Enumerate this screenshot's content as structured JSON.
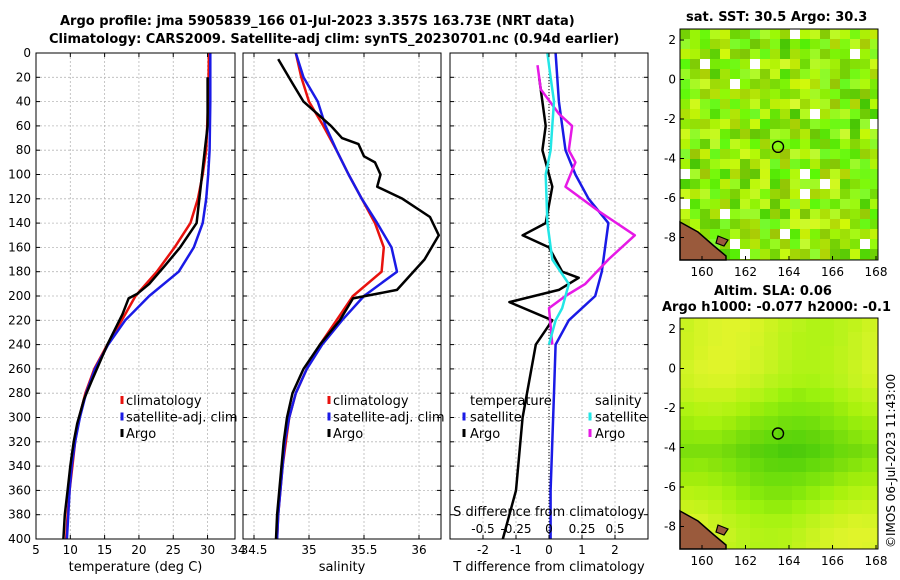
{
  "titles": {
    "line1": "Argo profile: jma 5905839_166 01-Jul-2023 3.357S 163.73E (NRT data)",
    "line2": "Climatology: CARS2009. Satellite-adj clim: synTS_20230701.nc (0.94d earlier)",
    "sst_title": "sat. SST: 30.5 Argo: 30.3",
    "sla_title1": "Altim. SLA: 0.06",
    "sla_title2": "Argo h1000: -0.077 h2000: -0.1",
    "footer": "©IMOS 06-Jul-2023 11:43:00"
  },
  "colors": {
    "climatology": "#e8120e",
    "satellite": "#1a1ae6",
    "argo": "#000000",
    "salinity": "#e619e6",
    "sat_salinity": "#22e6e6"
  },
  "chart_data": [
    {
      "type": "line",
      "name": "temperature",
      "xlabel": "temperature (deg C)",
      "ylabel": "",
      "xlim": [
        5,
        34
      ],
      "ylim": [
        0,
        400
      ],
      "xticks": [
        5,
        10,
        15,
        20,
        25,
        30
      ],
      "yticks": [
        0,
        20,
        40,
        60,
        80,
        100,
        120,
        140,
        160,
        180,
        200,
        220,
        240,
        260,
        280,
        300,
        320,
        340,
        360,
        380,
        400
      ],
      "legend": [
        "climatology",
        "satellite-adj. clim",
        "Argo"
      ],
      "series": [
        {
          "name": "climatology",
          "color": "#e8120e",
          "points": [
            [
              30.2,
              0
            ],
            [
              30.1,
              40
            ],
            [
              29.8,
              80
            ],
            [
              29.3,
              100
            ],
            [
              28.6,
              120
            ],
            [
              27.5,
              140
            ],
            [
              25.2,
              160
            ],
            [
              22.6,
              180
            ],
            [
              19.5,
              200
            ],
            [
              17.5,
              220
            ],
            [
              15.4,
              240
            ],
            [
              13.5,
              260
            ],
            [
              12.2,
              280
            ],
            [
              11.3,
              300
            ],
            [
              10.7,
              320
            ],
            [
              10.3,
              340
            ],
            [
              9.9,
              360
            ],
            [
              9.6,
              380
            ],
            [
              9.4,
              400
            ]
          ]
        },
        {
          "name": "satellite-adj. clim",
          "color": "#1a1ae6",
          "points": [
            [
              30.4,
              0
            ],
            [
              30.4,
              40
            ],
            [
              30.3,
              80
            ],
            [
              30.1,
              100
            ],
            [
              29.8,
              120
            ],
            [
              29.3,
              140
            ],
            [
              28.0,
              160
            ],
            [
              25.8,
              180
            ],
            [
              21.5,
              200
            ],
            [
              18.0,
              220
            ],
            [
              15.5,
              240
            ],
            [
              13.6,
              260
            ],
            [
              12.3,
              280
            ],
            [
              11.4,
              300
            ],
            [
              10.7,
              320
            ],
            [
              10.2,
              340
            ],
            [
              9.9,
              360
            ],
            [
              9.7,
              380
            ],
            [
              9.5,
              400
            ]
          ]
        },
        {
          "name": "Argo",
          "color": "#000000",
          "points": [
            [
              30.0,
              20
            ],
            [
              30.0,
              60
            ],
            [
              29.6,
              80
            ],
            [
              29.0,
              110
            ],
            [
              28.4,
              140
            ],
            [
              26.0,
              160
            ],
            [
              23.8,
              175
            ],
            [
              21.5,
              190
            ],
            [
              19.8,
              198
            ],
            [
              18.5,
              202
            ],
            [
              17.6,
              215
            ],
            [
              15.4,
              240
            ],
            [
              13.1,
              270
            ],
            [
              12.0,
              285
            ],
            [
              11.0,
              305
            ],
            [
              10.5,
              320
            ],
            [
              10.0,
              340
            ],
            [
              9.6,
              360
            ],
            [
              9.2,
              380
            ],
            [
              9.0,
              400
            ]
          ]
        }
      ]
    },
    {
      "type": "line",
      "name": "salinity",
      "xlabel": "salinity",
      "ylabel": "",
      "xlim": [
        34.4,
        36.2
      ],
      "ylim": [
        0,
        400
      ],
      "xticks": [
        34.5,
        35,
        35.5,
        36
      ],
      "legend": [
        "climatology",
        "satellite-adj. clim",
        "Argo"
      ],
      "series": [
        {
          "name": "climatology",
          "color": "#e8120e",
          "points": [
            [
              34.88,
              0
            ],
            [
              34.93,
              20
            ],
            [
              35.0,
              40
            ],
            [
              35.13,
              60
            ],
            [
              35.25,
              80
            ],
            [
              35.36,
              100
            ],
            [
              35.48,
              120
            ],
            [
              35.6,
              140
            ],
            [
              35.68,
              160
            ],
            [
              35.66,
              180
            ],
            [
              35.4,
              200
            ],
            [
              35.25,
              220
            ],
            [
              35.1,
              240
            ],
            [
              34.98,
              260
            ],
            [
              34.88,
              280
            ],
            [
              34.82,
              300
            ],
            [
              34.79,
              320
            ],
            [
              34.76,
              340
            ],
            [
              34.74,
              360
            ],
            [
              34.72,
              380
            ],
            [
              34.71,
              400
            ]
          ]
        },
        {
          "name": "satellite-adj. clim",
          "color": "#1a1ae6",
          "points": [
            [
              34.88,
              0
            ],
            [
              34.95,
              20
            ],
            [
              35.08,
              40
            ],
            [
              35.15,
              60
            ],
            [
              35.25,
              80
            ],
            [
              35.36,
              100
            ],
            [
              35.48,
              120
            ],
            [
              35.62,
              140
            ],
            [
              35.75,
              160
            ],
            [
              35.8,
              180
            ],
            [
              35.5,
              200
            ],
            [
              35.3,
              220
            ],
            [
              35.12,
              240
            ],
            [
              34.98,
              260
            ],
            [
              34.88,
              280
            ],
            [
              34.82,
              300
            ],
            [
              34.78,
              320
            ],
            [
              34.76,
              340
            ],
            [
              34.74,
              360
            ],
            [
              34.72,
              380
            ],
            [
              34.71,
              400
            ]
          ]
        },
        {
          "name": "Argo",
          "color": "#000000",
          "points": [
            [
              34.72,
              5
            ],
            [
              34.85,
              25
            ],
            [
              34.95,
              40
            ],
            [
              35.2,
              60
            ],
            [
              35.3,
              70
            ],
            [
              35.45,
              75
            ],
            [
              35.5,
              85
            ],
            [
              35.6,
              90
            ],
            [
              35.65,
              100
            ],
            [
              35.62,
              110
            ],
            [
              35.85,
              120
            ],
            [
              36.1,
              135
            ],
            [
              36.18,
              150
            ],
            [
              36.05,
              170
            ],
            [
              35.8,
              195
            ],
            [
              35.4,
              202
            ],
            [
              35.28,
              220
            ],
            [
              35.1,
              240
            ],
            [
              34.95,
              260
            ],
            [
              34.85,
              280
            ],
            [
              34.8,
              300
            ],
            [
              34.77,
              320
            ],
            [
              34.75,
              340
            ],
            [
              34.73,
              360
            ],
            [
              34.71,
              380
            ],
            [
              34.7,
              400
            ]
          ]
        }
      ]
    },
    {
      "type": "line",
      "name": "difference",
      "xlabel": "T difference from climatology",
      "xlabel_top": "S difference from climatology",
      "xlim": [
        -3,
        3
      ],
      "ylim": [
        0,
        400
      ],
      "xticks": [
        -2,
        -1,
        0,
        1,
        2
      ],
      "xticklabels_s": [
        "-0.5",
        "-0.25",
        "0",
        "0.25",
        "0.5"
      ],
      "legend_t": [
        "temperature",
        "satellite",
        "Argo"
      ],
      "legend_s": [
        "salinity",
        "satellite",
        "Argo"
      ],
      "series": [
        {
          "name": "T satellite",
          "color": "#1a1ae6",
          "points": [
            [
              0.2,
              0
            ],
            [
              0.3,
              40
            ],
            [
              0.5,
              80
            ],
            [
              0.8,
              100
            ],
            [
              1.2,
              120
            ],
            [
              1.8,
              140
            ],
            [
              1.7,
              160
            ],
            [
              1.6,
              180
            ],
            [
              1.5,
              190
            ],
            [
              1.4,
              200
            ],
            [
              0.6,
              220
            ],
            [
              0.2,
              240
            ],
            [
              0.15,
              280
            ],
            [
              0.1,
              320
            ],
            [
              0.05,
              360
            ],
            [
              0.05,
              400
            ]
          ]
        },
        {
          "name": "T Argo",
          "color": "#000000",
          "points": [
            [
              -0.3,
              20
            ],
            [
              -0.1,
              60
            ],
            [
              -0.2,
              80
            ],
            [
              0.1,
              110
            ],
            [
              -0.1,
              140
            ],
            [
              -0.8,
              150
            ],
            [
              0.0,
              160
            ],
            [
              0.4,
              180
            ],
            [
              0.9,
              185
            ],
            [
              0.3,
              195
            ],
            [
              -1.2,
              205
            ],
            [
              0.1,
              220
            ],
            [
              -0.4,
              240
            ],
            [
              -0.6,
              270
            ],
            [
              -0.8,
              300
            ],
            [
              -0.9,
              330
            ],
            [
              -1.0,
              360
            ],
            [
              -1.2,
              380
            ],
            [
              -1.4,
              400
            ]
          ]
        },
        {
          "name": "S salinity",
          "color": "#e619e6",
          "points": [
            [
              -0.35,
              10
            ],
            [
              -0.25,
              30
            ],
            [
              0.3,
              50
            ],
            [
              0.7,
              60
            ],
            [
              0.6,
              80
            ],
            [
              0.8,
              90
            ],
            [
              0.5,
              110
            ],
            [
              1.5,
              130
            ],
            [
              2.6,
              150
            ],
            [
              1.8,
              170
            ],
            [
              1.1,
              190
            ],
            [
              0.5,
              200
            ],
            [
              0.0,
              210
            ],
            [
              0.1,
              240
            ]
          ]
        },
        {
          "name": "S satellite",
          "color": "#22e6e6",
          "points": [
            [
              -0.05,
              0
            ],
            [
              0.05,
              20
            ],
            [
              0.15,
              40
            ],
            [
              0.05,
              80
            ],
            [
              -0.1,
              100
            ],
            [
              -0.05,
              140
            ],
            [
              0.1,
              170
            ],
            [
              0.6,
              190
            ],
            [
              0.4,
              210
            ],
            [
              0.2,
              220
            ],
            [
              0.0,
              240
            ]
          ]
        }
      ]
    }
  ],
  "maps": {
    "sst": {
      "xticks": [
        "160",
        "162",
        "164",
        "166",
        "168"
      ],
      "yticks": [
        "2",
        "0",
        "-2",
        "-4",
        "-6",
        "-8"
      ]
    },
    "sla": {
      "xticks": [
        "160",
        "162",
        "164",
        "166",
        "168"
      ],
      "yticks": [
        "2",
        "0",
        "-2",
        "-4",
        "-6",
        "-8"
      ]
    }
  }
}
